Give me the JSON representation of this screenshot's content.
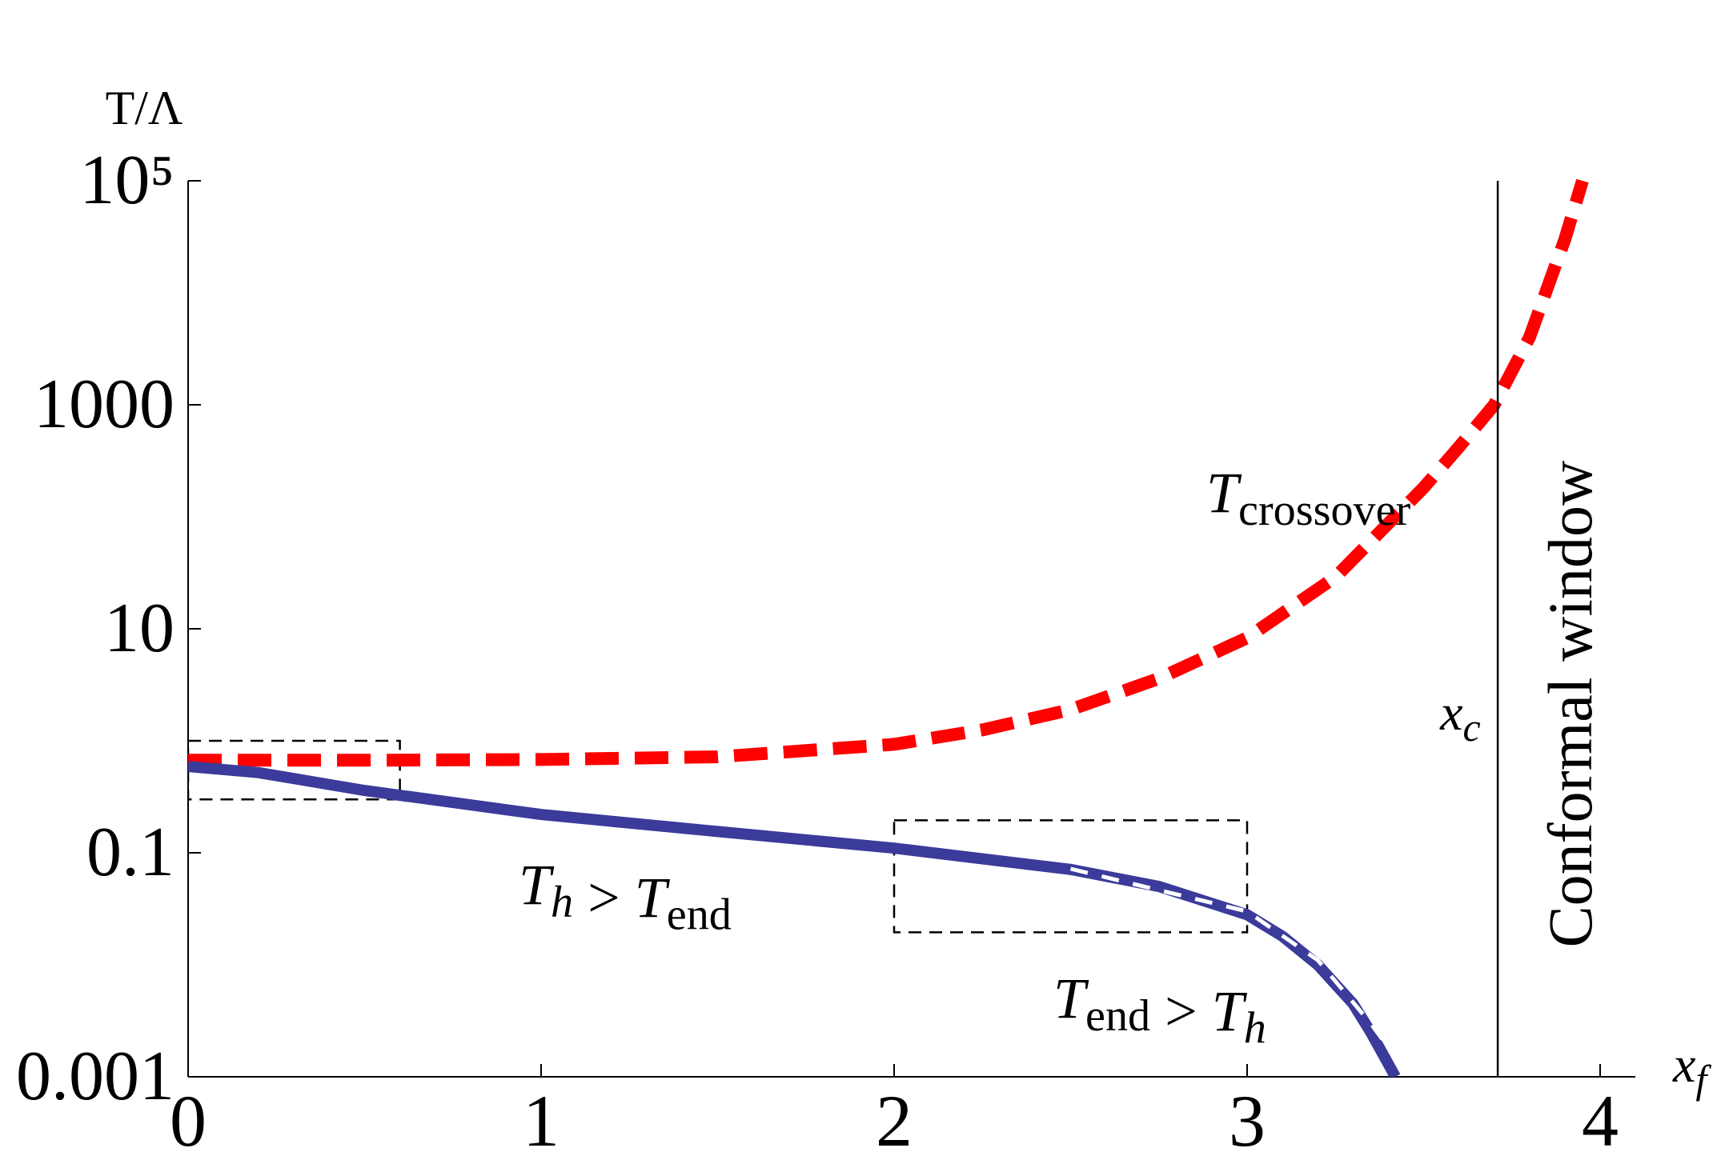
{
  "chart_data": {
    "type": "line",
    "log_y": true,
    "ylabel": "T/Λ",
    "xlabel": {
      "text": "x",
      "sub": "f"
    },
    "xlim": [
      0,
      4.1
    ],
    "ylim": [
      0.001,
      100000
    ],
    "xticks": [
      0,
      1,
      2,
      3,
      4
    ],
    "yticks": [
      0.001,
      0.1,
      10,
      1000,
      {
        "value": 100000,
        "label": "10⁵"
      }
    ],
    "series": [
      {
        "color": "#ff0000",
        "style": "dashed",
        "x": [
          0,
          0.5,
          1,
          1.5,
          2,
          2.25,
          2.5,
          2.75,
          3,
          3.25,
          3.5,
          3.6,
          3.7,
          3.8,
          3.9,
          3.95
        ],
        "values": [
          0.67,
          0.67,
          0.68,
          0.72,
          0.93,
          1.25,
          1.9,
          3.6,
          8.3,
          29,
          182,
          420,
          1000,
          4000,
          30000,
          100000
        ]
      },
      {
        "color": "#3b3b9b",
        "style": "solid",
        "x": [
          0,
          0.2,
          0.5,
          1,
          1.5,
          2,
          2.5,
          2.75,
          3,
          3.1,
          3.2,
          3.3,
          3.35,
          3.4,
          3.42
        ],
        "values": [
          0.59,
          0.52,
          0.36,
          0.22,
          0.155,
          0.11,
          0.071,
          0.05,
          0.028,
          0.018,
          0.01,
          0.0045,
          0.0025,
          0.0013,
          0.001
        ]
      },
      {
        "color": "#ffffff",
        "style": "dashed",
        "x": [
          2.5,
          3,
          3.2,
          3.35,
          3.46
        ],
        "values": [
          0.072,
          0.03,
          0.011,
          0.003,
          0.001
        ]
      }
    ],
    "regions": [
      {
        "x": [
          0,
          0.6
        ],
        "y": [
          0.3,
          1
        ]
      },
      {
        "x": [
          2,
          3
        ],
        "y": [
          0.0195,
          0.195
        ]
      }
    ],
    "vline": {
      "x": 3.71,
      "label": {
        "text": "x",
        "sub": "c"
      },
      "region_label": "Conformal window"
    },
    "annotations": [
      [
        {
          "text": "T",
          "sub": "crossover"
        }
      ],
      [
        {
          "text": "T",
          "sub": "h"
        },
        {
          "text": " > "
        },
        {
          "text": "T",
          "sub": "end"
        }
      ],
      [
        {
          "text": "T",
          "sub": "end"
        },
        {
          "text": " > "
        },
        {
          "text": "T",
          "sub": "h"
        }
      ]
    ]
  }
}
